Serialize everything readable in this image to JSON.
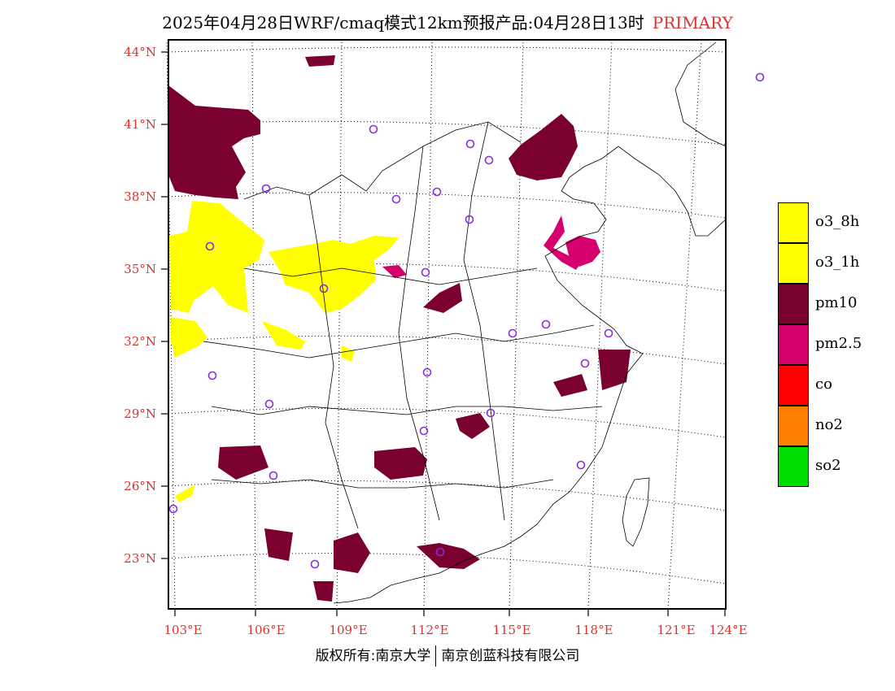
{
  "title": {
    "main": "2025年04月28日WRF/cmaq模式12km预报产品:04月28日13时",
    "tag": "PRIMARY",
    "tag_color": "#e03030"
  },
  "axes": {
    "latitude_labels": [
      "44°N",
      "41°N",
      "38°N",
      "35°N",
      "32°N",
      "29°N",
      "26°N",
      "23°N"
    ],
    "longitude_labels": [
      "103°E",
      "106°E",
      "109°E",
      "112°E",
      "115°E",
      "118°E",
      "121°E",
      "124°E"
    ],
    "label_color": "#e03030"
  },
  "legend": [
    {
      "label": "o3_8h",
      "color": "#ffff00"
    },
    {
      "label": "o3_1h",
      "color": "#ffff00"
    },
    {
      "label": "pm10",
      "color": "#7a0030"
    },
    {
      "label": "pm2.5",
      "color": "#d4006e"
    },
    {
      "label": "co",
      "color": "#ff0000"
    },
    {
      "label": "no2",
      "color": "#ff8000"
    },
    {
      "label": "so2",
      "color": "#00dd00"
    }
  ],
  "footer": {
    "left": "版权所有:南京大学",
    "right": "南京创蓝科技有限公司"
  }
}
